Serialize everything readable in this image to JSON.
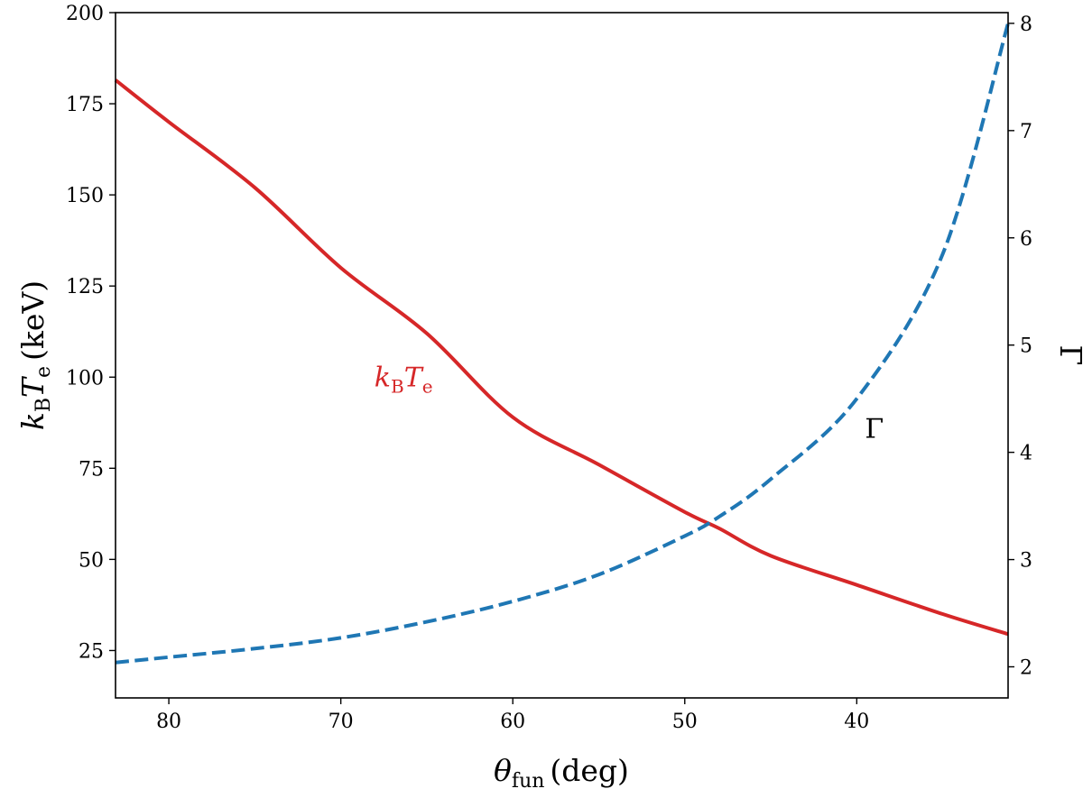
{
  "chart_data": {
    "type": "line",
    "x": {
      "label_symbol": "θ",
      "label_sub": "fun",
      "label_unit": "(deg)",
      "range": [
        83.1,
        31.2
      ],
      "ticks": [
        80,
        70,
        60,
        50,
        40
      ],
      "tick_labels": [
        "80",
        "70",
        "60",
        "50",
        "40"
      ],
      "reversed": true
    },
    "y_left": {
      "label_symbol_k": "k",
      "label_sub_B": "B",
      "label_symbol_T": "T",
      "label_sub_e": "e",
      "label_unit": "(keV)",
      "range": [
        12,
        200
      ],
      "ticks": [
        25,
        50,
        75,
        100,
        125,
        150,
        175,
        200
      ],
      "tick_labels": [
        "25",
        "50",
        "75",
        "100",
        "125",
        "150",
        "175",
        "200"
      ]
    },
    "y_right": {
      "label": "Γ",
      "range": [
        1.71,
        8.1
      ],
      "ticks": [
        2,
        3,
        4,
        5,
        6,
        7,
        8
      ],
      "tick_labels": [
        "2",
        "3",
        "4",
        "5",
        "6",
        "7",
        "8"
      ]
    },
    "series": [
      {
        "axis": "left",
        "color": "#d62728",
        "style": "solid",
        "annotation": {
          "k": "k",
          "B": "B",
          "T": "T",
          "e": "e",
          "x": 67,
          "y": 100
        },
        "points": [
          [
            83.1,
            181.5
          ],
          [
            80,
            170
          ],
          [
            75,
            152
          ],
          [
            70,
            130
          ],
          [
            65,
            112
          ],
          [
            60,
            89
          ],
          [
            55,
            76
          ],
          [
            50,
            63
          ],
          [
            48,
            58.5
          ],
          [
            45,
            51
          ],
          [
            40,
            43
          ],
          [
            35,
            35
          ],
          [
            31.2,
            29.5
          ]
        ]
      },
      {
        "axis": "right",
        "color": "#1f77b4",
        "style": "dashed",
        "annotation": {
          "text": "Γ",
          "x": 39,
          "y": 4.22
        },
        "points": [
          [
            83.1,
            2.04
          ],
          [
            80,
            2.09
          ],
          [
            75,
            2.17
          ],
          [
            70,
            2.27
          ],
          [
            65,
            2.42
          ],
          [
            60,
            2.61
          ],
          [
            55,
            2.86
          ],
          [
            50,
            3.22
          ],
          [
            48,
            3.4
          ],
          [
            45,
            3.75
          ],
          [
            40,
            4.5
          ],
          [
            35,
            5.85
          ],
          [
            31.2,
            8.0
          ]
        ]
      }
    ]
  }
}
